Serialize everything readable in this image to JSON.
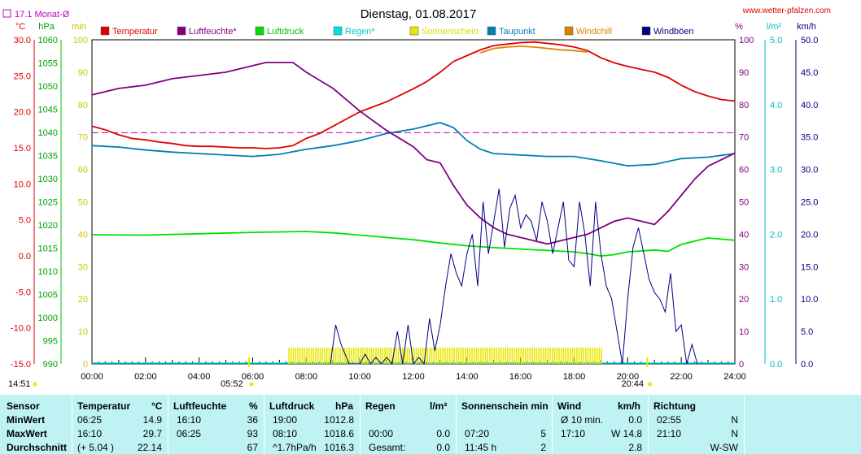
{
  "header": {
    "monthly_avg": "17.1 Monat-Ø",
    "title": "Dienstag, 01.08.2017",
    "website": "www.wetter-pfalzen.com"
  },
  "units": {
    "left": [
      "°C",
      "hPa",
      "min"
    ],
    "right": [
      "%",
      "l/m²",
      "km/h"
    ]
  },
  "legend": [
    {
      "name": "Temperatur",
      "color": "#e00000"
    },
    {
      "name": "Luftfeuchte*",
      "color": "#800080"
    },
    {
      "name": "Luftdruck",
      "color": "#00e000"
    },
    {
      "name": "Regen*",
      "color": "#00e0e0"
    },
    {
      "name": "Sonnenschein",
      "color": "#e8e800"
    },
    {
      "name": "Taupunkt",
      "color": "#0080b0"
    },
    {
      "name": "Windchill",
      "color": "#e08000"
    },
    {
      "name": "Windböen",
      "color": "#000080"
    }
  ],
  "annotations": {
    "start_time": "14:51",
    "sunrise": "05:52",
    "sunset": "20:44"
  },
  "chart_data": {
    "type": "line",
    "x_ticks": [
      "00:00",
      "02:00",
      "04:00",
      "06:00",
      "08:00",
      "10:00",
      "12:00",
      "14:00",
      "16:00",
      "18:00",
      "20:00",
      "22:00",
      "24:00"
    ],
    "y_axes": {
      "temperature_c": {
        "range": [
          -15,
          30
        ],
        "ticks": [
          "30.0",
          "25.0",
          "20.0",
          "15.0",
          "10.0",
          "5.0",
          "0.0",
          "-5.0",
          "-10.0",
          "-15.0"
        ]
      },
      "pressure_hpa": {
        "range": [
          990,
          1060
        ],
        "ticks": [
          "1060",
          "1055",
          "1050",
          "1045",
          "1040",
          "1035",
          "1030",
          "1025",
          "1020",
          "1015",
          "1010",
          "1005",
          "1000",
          "995",
          "990"
        ]
      },
      "sunshine_min": {
        "range": [
          0,
          100
        ],
        "ticks": [
          "100",
          "90",
          "80",
          "70",
          "60",
          "50",
          "40",
          "30",
          "20",
          "10",
          "0"
        ]
      },
      "humidity_pct": {
        "range": [
          0,
          100
        ],
        "ticks": [
          "100",
          "90",
          "80",
          "70",
          "60",
          "50",
          "40",
          "30",
          "20",
          "10",
          "0"
        ]
      },
      "rain_lm2": {
        "range": [
          0,
          5
        ],
        "ticks": [
          "5.0",
          "4.0",
          "3.0",
          "2.0",
          "1.0",
          "0.0"
        ]
      },
      "wind_kmh": {
        "range": [
          0,
          50
        ],
        "ticks": [
          "50.0",
          "45.0",
          "40.0",
          "35.0",
          "30.0",
          "25.0",
          "20.0",
          "15.0",
          "10.0",
          "5.0",
          "0.0"
        ]
      }
    },
    "monthly_avg_temp": 17.1,
    "series": [
      {
        "name": "Temperatur",
        "axis": "temperature_c",
        "color": "#e00000",
        "x": [
          0,
          0.5,
          1,
          1.5,
          2,
          2.5,
          3,
          3.5,
          4,
          4.5,
          5,
          5.5,
          6,
          6.5,
          7,
          7.5,
          8,
          8.5,
          9,
          9.5,
          10,
          10.5,
          11,
          11.5,
          12,
          12.5,
          13,
          13.5,
          14,
          14.5,
          15,
          15.5,
          16,
          16.5,
          17,
          17.5,
          18,
          18.5,
          19,
          19.5,
          20,
          20.5,
          21,
          21.5,
          22,
          22.5,
          23,
          23.5,
          24
        ],
        "y": [
          18.0,
          17.5,
          16.8,
          16.3,
          16.1,
          15.8,
          15.6,
          15.3,
          15.2,
          15.2,
          15.1,
          15.0,
          15.0,
          14.9,
          15.0,
          15.3,
          16.3,
          17.0,
          18.0,
          19.0,
          20.0,
          20.7,
          21.4,
          22.3,
          23.2,
          24.2,
          25.5,
          27.0,
          27.8,
          28.6,
          29.2,
          29.4,
          29.6,
          29.7,
          29.5,
          29.3,
          29.0,
          28.5,
          27.5,
          26.8,
          26.3,
          25.9,
          25.5,
          24.8,
          23.7,
          22.8,
          22.2,
          21.7,
          21.5
        ]
      },
      {
        "name": "Windchill",
        "axis": "temperature_c",
        "color": "#e08000",
        "x": [
          14.5,
          15,
          15.5,
          16,
          16.5,
          17,
          17.5,
          18,
          18.5
        ],
        "y": [
          28.2,
          28.8,
          29.0,
          29.1,
          29.0,
          28.8,
          28.6,
          28.5,
          28.3
        ]
      },
      {
        "name": "Taupunkt",
        "axis": "temperature_c",
        "color": "#0080b0",
        "x": [
          0,
          1,
          2,
          3,
          4,
          5,
          6,
          7,
          8,
          9,
          10,
          11,
          12,
          13,
          13.5,
          14,
          14.5,
          15,
          16,
          17,
          18,
          19,
          20,
          21,
          22,
          23,
          24
        ],
        "y": [
          15.3,
          15.1,
          14.7,
          14.4,
          14.2,
          14.0,
          13.8,
          14.1,
          14.8,
          15.3,
          16.0,
          17.0,
          17.6,
          18.5,
          17.8,
          16.0,
          14.8,
          14.2,
          14.0,
          13.8,
          13.8,
          13.2,
          12.5,
          12.7,
          13.5,
          13.7,
          14.2
        ]
      },
      {
        "name": "Luftfeuchte*",
        "axis": "humidity_pct",
        "color": "#800080",
        "x": [
          0,
          1,
          2,
          3,
          4,
          5,
          6,
          6.5,
          7,
          7.5,
          8,
          9,
          10,
          11,
          12,
          12.5,
          13,
          13.5,
          14,
          14.5,
          15,
          15.5,
          16,
          16.5,
          17,
          17.5,
          18,
          18.5,
          19,
          19.5,
          20,
          20.5,
          21,
          21.5,
          22,
          22.5,
          23,
          23.5,
          24
        ],
        "y": [
          83,
          85,
          86,
          88,
          89,
          90,
          92,
          93,
          93,
          93,
          90,
          85,
          78,
          72,
          67,
          63,
          62,
          55,
          49,
          45,
          42,
          40,
          39,
          38,
          37,
          38,
          39,
          40,
          42,
          44,
          45,
          44,
          43,
          47,
          52,
          57,
          61,
          63,
          65
        ]
      },
      {
        "name": "Luftdruck",
        "axis": "pressure_hpa",
        "color": "#00e000",
        "x": [
          0,
          2,
          4,
          6,
          8,
          9,
          10,
          11,
          12,
          13,
          14,
          15,
          16,
          17,
          18,
          18.5,
          19,
          19.5,
          20,
          21,
          21.5,
          22,
          22.5,
          23,
          24
        ],
        "y": [
          1017.9,
          1017.8,
          1018.1,
          1018.4,
          1018.6,
          1018.3,
          1017.8,
          1017.3,
          1016.8,
          1016.1,
          1015.5,
          1015.1,
          1014.8,
          1014.5,
          1014.2,
          1013.8,
          1013.3,
          1013.6,
          1014.2,
          1014.6,
          1014.3,
          1015.8,
          1016.5,
          1017.2,
          1016.7
        ]
      },
      {
        "name": "Windböen",
        "axis": "wind_kmh",
        "color": "#000080",
        "x": [
          8.9,
          9.1,
          9.3,
          9.6,
          9.8,
          10,
          10.2,
          10.4,
          10.6,
          10.8,
          11,
          11.2,
          11.4,
          11.6,
          11.8,
          12,
          12.2,
          12.4,
          12.6,
          12.8,
          13,
          13.2,
          13.4,
          13.6,
          13.8,
          14,
          14.2,
          14.4,
          14.6,
          14.8,
          15,
          15.2,
          15.4,
          15.6,
          15.8,
          16,
          16.2,
          16.4,
          16.6,
          16.8,
          17,
          17.2,
          17.4,
          17.6,
          17.8,
          18,
          18.2,
          18.4,
          18.6,
          18.8,
          19,
          19.2,
          19.4,
          19.6,
          19.8,
          20,
          20.2,
          20.4,
          20.6,
          20.8,
          21,
          21.2,
          21.4,
          21.6,
          21.8,
          22,
          22.2,
          22.4,
          22.6
        ],
        "y": [
          0,
          6,
          3,
          0,
          0,
          0,
          1.5,
          0,
          1,
          0,
          1,
          0,
          5,
          0,
          6,
          0,
          1,
          0,
          7,
          2,
          6,
          12,
          17,
          14,
          12,
          17,
          20,
          12,
          25,
          17,
          22,
          27,
          18,
          24,
          26,
          21,
          23,
          22,
          19,
          25,
          22,
          17,
          21,
          25,
          16,
          15,
          25,
          20,
          12,
          25,
          17,
          12,
          10,
          5,
          0,
          10,
          18,
          21,
          17,
          13,
          11,
          10,
          8,
          14,
          5,
          6,
          0,
          3,
          0
        ]
      }
    ],
    "sunshine_intervals": [
      [
        7.33,
        19.0
      ]
    ]
  },
  "table": {
    "headers": {
      "sensor": "Sensor",
      "temp": "Temperatur",
      "temp_unit": "°C",
      "hum": "Luftfeuchte",
      "hum_unit": "%",
      "press": "Luftdruck",
      "press_unit": "hPa",
      "rain": "Regen",
      "rain_unit": "l/m²",
      "sun": "Sonnenschein min",
      "wind": "Wind",
      "wind_unit": "km/h",
      "dir": "Richtung"
    },
    "rows": [
      {
        "label": "MinWert",
        "temp_time": "06:25",
        "temp_val": "14.9",
        "hum_time": "16:10",
        "hum_val": "36",
        "press_time": "19:00",
        "press_val": "1012.8",
        "rain_time": "",
        "rain_val": "",
        "sun_time": "",
        "sun_val": "",
        "wind_time": "Ø 10 min.",
        "wind_val": "0.0",
        "dir_time": "02:55",
        "dir_val": "N"
      },
      {
        "label": "MaxWert",
        "temp_time": "16:10",
        "temp_val": "29.7",
        "hum_time": "06:25",
        "hum_val": "93",
        "press_time": "08:10",
        "press_val": "1018.6",
        "rain_time": "00:00",
        "rain_val": "0.0",
        "sun_time": "07:20",
        "sun_val": "5",
        "wind_time": "17:10",
        "wind_val": "W 14.8",
        "dir_time": "21:10",
        "dir_val": "N"
      },
      {
        "label": "Durchschnitt",
        "temp_time": "(+ 5.04 )",
        "temp_val": "22.14",
        "hum_time": "",
        "hum_val": "67",
        "press_time": "^1.7hPa/h",
        "press_val": "1016.3",
        "rain_time": "Gesamt:",
        "rain_val": "0.0",
        "sun_time": "11:45 h",
        "sun_val": "2",
        "wind_time": "",
        "wind_val": "2.8",
        "dir_time": "",
        "dir_val": "W-SW"
      }
    ]
  }
}
